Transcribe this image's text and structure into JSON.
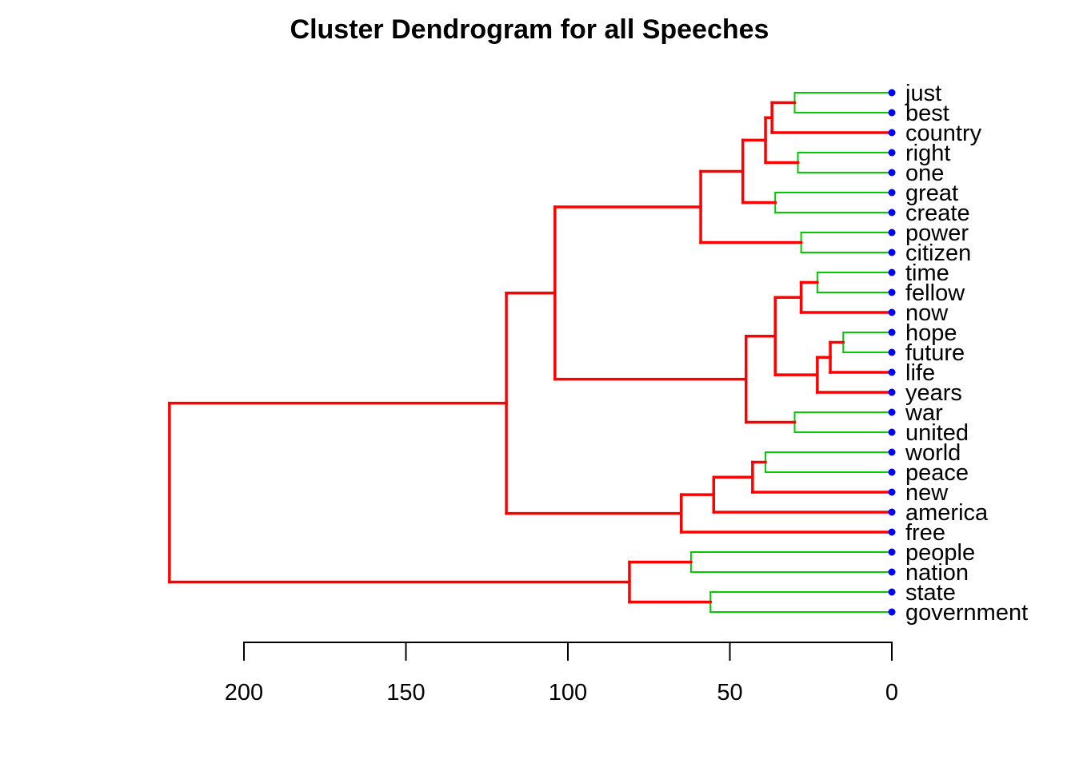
{
  "chart_data": {
    "type": "dendrogram",
    "orientation": "horizontal",
    "title": "Cluster Dendrogram for all Speeches",
    "xlim": [
      0,
      200
    ],
    "ticks": [
      200,
      150,
      100,
      50,
      0
    ],
    "colors": {
      "top_branches": "#ff0000",
      "low_branches": "#00cc00",
      "leaf_points": "#0000ff"
    },
    "leaves": [
      "just",
      "best",
      "country",
      "right",
      "one",
      "great",
      "create",
      "power",
      "citizen",
      "time",
      "fellow",
      "now",
      "hope",
      "future",
      "life",
      "years",
      "war",
      "united",
      "world",
      "peace",
      "new",
      "america",
      "free",
      "people",
      "nation",
      "state",
      "government"
    ],
    "merges": [
      {
        "id": "m1",
        "children": [
          "just",
          "best"
        ],
        "height": 30
      },
      {
        "id": "m2",
        "children": [
          "m1",
          "country"
        ],
        "height": 37
      },
      {
        "id": "m3",
        "children": [
          "right",
          "one"
        ],
        "height": 29
      },
      {
        "id": "m4",
        "children": [
          "m2",
          "m3"
        ],
        "height": 39
      },
      {
        "id": "m5",
        "children": [
          "great",
          "create"
        ],
        "height": 36
      },
      {
        "id": "m6",
        "children": [
          "m4",
          "m5"
        ],
        "height": 46
      },
      {
        "id": "m7",
        "children": [
          "power",
          "citizen"
        ],
        "height": 28
      },
      {
        "id": "m8",
        "children": [
          "m6",
          "m7"
        ],
        "height": 59
      },
      {
        "id": "m9",
        "children": [
          "time",
          "fellow"
        ],
        "height": 23
      },
      {
        "id": "m10",
        "children": [
          "m9",
          "now"
        ],
        "height": 28
      },
      {
        "id": "m11",
        "children": [
          "hope",
          "future"
        ],
        "height": 15
      },
      {
        "id": "m12",
        "children": [
          "m11",
          "life"
        ],
        "height": 19
      },
      {
        "id": "m13",
        "children": [
          "m12",
          "years"
        ],
        "height": 23
      },
      {
        "id": "m14",
        "children": [
          "m10",
          "m13"
        ],
        "height": 36
      },
      {
        "id": "m15",
        "children": [
          "war",
          "united"
        ],
        "height": 30
      },
      {
        "id": "m16",
        "children": [
          "m14",
          "m15"
        ],
        "height": 45
      },
      {
        "id": "m17",
        "children": [
          "m8",
          "m16"
        ],
        "height": 104
      },
      {
        "id": "m18",
        "children": [
          "world",
          "peace"
        ],
        "height": 39
      },
      {
        "id": "m19",
        "children": [
          "m18",
          "new"
        ],
        "height": 43
      },
      {
        "id": "m20",
        "children": [
          "m19",
          "america"
        ],
        "height": 55
      },
      {
        "id": "m21",
        "children": [
          "m20",
          "free"
        ],
        "height": 65
      },
      {
        "id": "m22",
        "children": [
          "m17",
          "m21"
        ],
        "height": 119
      },
      {
        "id": "m23",
        "children": [
          "people",
          "nation"
        ],
        "height": 62
      },
      {
        "id": "m24",
        "children": [
          "state",
          "government"
        ],
        "height": 56
      },
      {
        "id": "m25",
        "children": [
          "m23",
          "m24"
        ],
        "height": 81
      },
      {
        "id": "m26",
        "children": [
          "m22",
          "m25"
        ],
        "height": 223
      }
    ],
    "red_merges": [
      "m2",
      "m4",
      "m6",
      "m8",
      "m10",
      "m12",
      "m13",
      "m14",
      "m16",
      "m17",
      "m19",
      "m20",
      "m21",
      "m22",
      "m25",
      "m26"
    ]
  }
}
